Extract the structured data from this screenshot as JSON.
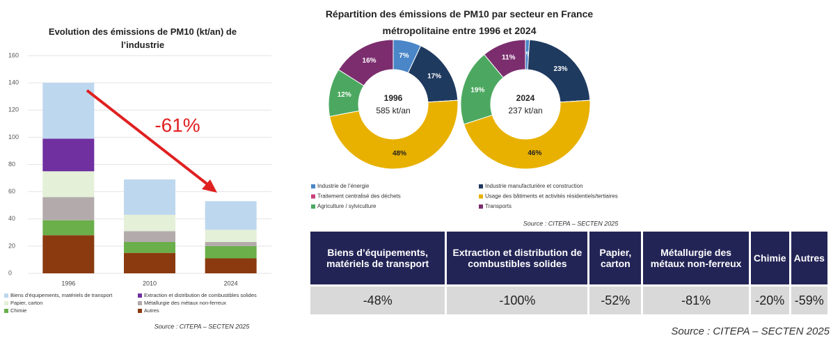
{
  "chart_data": [
    {
      "type": "stacked_bar",
      "title": "Evolution des émissions de PM10 (kt/an) de l’industrie",
      "categories": [
        "1996",
        "2010",
        "2024"
      ],
      "series": [
        {
          "name": "Autres",
          "color": "#8b3a0f",
          "values": [
            28,
            15,
            11
          ]
        },
        {
          "name": "Chimie",
          "color": "#6aaf4a",
          "values": [
            11,
            8,
            9
          ]
        },
        {
          "name": "Métallurgie des métaux non-ferreux",
          "color": "#b3abab",
          "values": [
            17,
            8,
            3
          ]
        },
        {
          "name": "Papier, carton",
          "color": "#e4f0d8",
          "values": [
            19,
            12,
            9
          ]
        },
        {
          "name": "Extraction et distribution de combustibles solides",
          "color": "#7030a0",
          "values": [
            24,
            0,
            0
          ]
        },
        {
          "name": "Biens d’équipements, matériels de transport",
          "color": "#bdd7ee",
          "values": [
            41,
            26,
            21
          ]
        }
      ],
      "ylim": [
        0,
        160
      ],
      "yticks": [
        0,
        20,
        40,
        60,
        80,
        100,
        120,
        140,
        160
      ],
      "grid": true,
      "annotation": "-61%",
      "source": "Source : CITEPA – SECTEN 2025"
    },
    {
      "type": "donut",
      "title": "Répartition des émissions de PM10 par secteur en France métropolitaine entre 1996 et 2024",
      "categories": [
        "Industrie de l’énergie",
        "Industrie manufacturière et construction",
        "Traitement centralisé des déchets",
        "Usage des bâtiments et activités résidentiels/tertiaires",
        "Agriculture / sylviculture",
        "Transports"
      ],
      "colors": [
        "#4a86c8",
        "#1f3a5f",
        "#c8407a",
        "#e8b100",
        "#4ca860",
        "#7b2d6e"
      ],
      "series": [
        {
          "name": "1996",
          "subtitle": "585 kt/an",
          "values": [
            7,
            17,
            0,
            48,
            12,
            16
          ],
          "value_labels": [
            "7%",
            "17%",
            null,
            "48%",
            "12%",
            "16%"
          ]
        },
        {
          "name": "2024",
          "subtitle": "237 kt/an",
          "values": [
            1,
            23,
            0,
            46,
            19,
            11
          ],
          "value_labels": [
            "1%",
            "23%",
            null,
            "46%",
            "19%",
            "11%"
          ]
        }
      ],
      "source": "Source : CITEPA – SECTEN 2025"
    }
  ],
  "table": {
    "header": [
      "Biens d’équipements, matériels de transport",
      "Extraction et distribution de combustibles solides",
      "Papier, carton",
      "Métallurgie des métaux non-ferreux",
      "Chimie",
      "Autres"
    ],
    "rows": [
      [
        "-48%",
        "-100%",
        "-52%",
        "-81%",
        "-20%",
        "-59%"
      ]
    ],
    "source": "Source : CITEPA – SECTEN 2025"
  }
}
